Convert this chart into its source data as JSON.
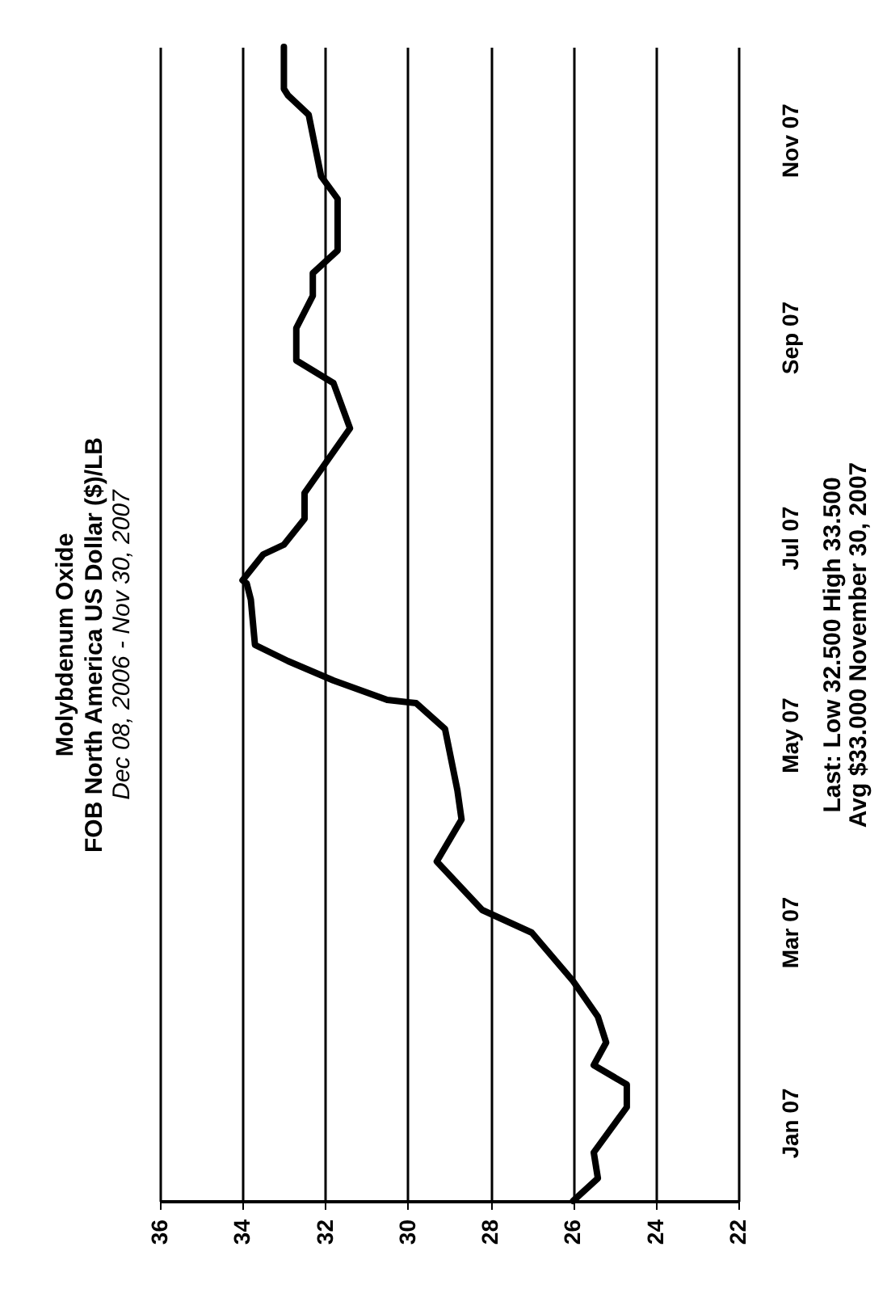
{
  "chart_data": {
    "type": "line",
    "title": "Molybdenum Oxide",
    "subtitle": [
      "FOB North America   US Dollar ($)/LB",
      "Dec 08, 2006 - Nov 30, 2007"
    ],
    "x": [
      "2006-12-08",
      "2006-12-15",
      "2006-12-23",
      "2007-01-06",
      "2007-01-13",
      "2007-01-19",
      "2007-01-26",
      "2007-02-03",
      "2007-02-14",
      "2007-03-01",
      "2007-03-08",
      "2007-03-23",
      "2007-04-05",
      "2007-04-14",
      "2007-05-03",
      "2007-05-11",
      "2007-05-12",
      "2007-05-18",
      "2007-05-24",
      "2007-05-29",
      "2007-06-12",
      "2007-06-17",
      "2007-06-18",
      "2007-06-26",
      "2007-06-29",
      "2007-07-07",
      "2007-07-15",
      "2007-08-04",
      "2007-08-18",
      "2007-08-25",
      "2007-09-04",
      "2007-09-14",
      "2007-09-21",
      "2007-09-28",
      "2007-10-14",
      "2007-10-21",
      "2007-11-09",
      "2007-11-15",
      "2007-11-17",
      "2007-11-30"
    ],
    "series": [
      {
        "color": "#000000",
        "values": [
          26.0,
          25.4,
          25.5,
          24.7,
          24.7,
          25.5,
          25.2,
          25.4,
          26.0,
          27.0,
          28.2,
          29.3,
          28.7,
          28.8,
          29.1,
          29.8,
          30.5,
          31.8,
          32.9,
          33.7,
          33.8,
          33.9,
          34.0,
          33.5,
          33.0,
          32.5,
          32.5,
          31.4,
          31.8,
          32.7,
          32.7,
          32.3,
          32.3,
          31.7,
          31.7,
          32.1,
          32.4,
          32.9,
          33.0,
          33.0
        ]
      }
    ],
    "orientation": "horizontal",
    "ylim": [
      "2006-12-08",
      "2007-11-30"
    ],
    "yticks": [
      {
        "value": "2007-01-01",
        "label": "Jan 07"
      },
      {
        "value": "2007-03-01",
        "label": "Mar 07"
      },
      {
        "value": "2007-05-01",
        "label": "May 07"
      },
      {
        "value": "2007-07-01",
        "label": "Jul 07"
      },
      {
        "value": "2007-09-01",
        "label": "Sep 07"
      },
      {
        "value": "2007-11-01",
        "label": "Nov 07"
      }
    ],
    "xlim": [
      36,
      22
    ],
    "xticks": [
      36,
      34,
      32,
      30,
      28,
      26,
      24,
      22
    ],
    "grid": "x",
    "marker": "none",
    "line_style": "solid",
    "annotations": [
      "Last: Low 32.500   High 33.500",
      "Avg $33.000   November 30, 2007"
    ]
  }
}
